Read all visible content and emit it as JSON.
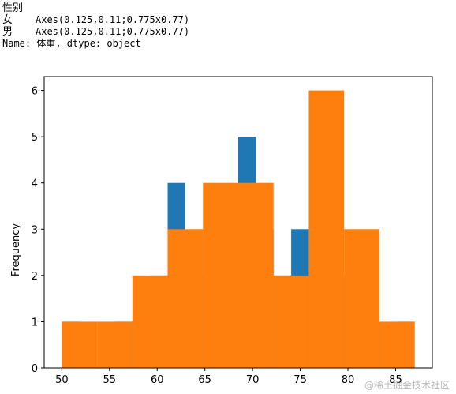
{
  "console": {
    "header": "性别",
    "rows": [
      {
        "category": "女",
        "value": "Axes(0.125,0.11;0.775x0.77)"
      },
      {
        "category": "男",
        "value": "Axes(0.125,0.11;0.775x0.77)"
      }
    ],
    "footer": "Name: 体重, dtype: object"
  },
  "chart_data": {
    "type": "bar",
    "ylabel": "Frequency",
    "xlabel": "",
    "title": "",
    "xlim": [
      48.15,
      88.85
    ],
    "ylim": [
      0,
      6.3
    ],
    "x_ticks": [
      50,
      55,
      60,
      65,
      70,
      75,
      80,
      85
    ],
    "y_ticks": [
      0,
      1,
      2,
      3,
      4,
      5,
      6
    ],
    "grid": false,
    "series": [
      {
        "color": "#1f77b4",
        "bin_edges": [
          50,
          51.85,
          53.7,
          55.55,
          57.4,
          59.25,
          61.1,
          62.95,
          64.8,
          66.65,
          68.5,
          70.35,
          72.2,
          74.05,
          75.9,
          77.75,
          79.6,
          81.45,
          83.3,
          85.15,
          87
        ],
        "counts": [
          1,
          0,
          0,
          1,
          1,
          2,
          4,
          2,
          3,
          2,
          5,
          3,
          2,
          3,
          3,
          2,
          2,
          1,
          0,
          1
        ]
      },
      {
        "color": "#ff7f0e",
        "bin_edges": [
          50,
          53.7,
          57.4,
          61.1,
          64.8,
          68.5,
          72.2,
          75.9,
          79.6,
          83.3,
          87
        ],
        "counts": [
          1,
          1,
          2,
          3,
          4,
          4,
          2,
          6,
          3,
          1
        ]
      }
    ]
  },
  "watermark": "@稀土掘金技术社区"
}
